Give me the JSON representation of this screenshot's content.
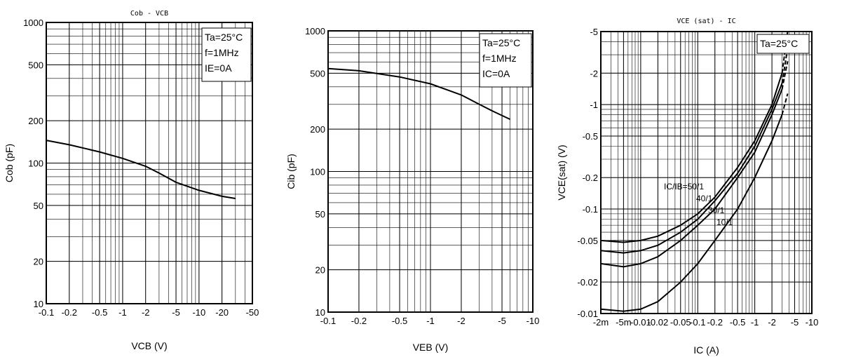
{
  "chart_data": [
    {
      "type": "line",
      "title": "Cob - VCB",
      "xlabel": "VCB (V)",
      "ylabel": "Cob (pF)",
      "x_scale": "log",
      "y_scale": "log",
      "xlim": [
        -0.1,
        -50
      ],
      "ylim": [
        10,
        1000
      ],
      "x_ticks": [
        -0.1,
        -0.2,
        -0.5,
        -1,
        -2,
        -5,
        -10,
        -20,
        -50
      ],
      "x_tick_labels": [
        "-0.1",
        "-0.2",
        "-0.5",
        "-1",
        "-2",
        "-5",
        "-10",
        "-20",
        "-50"
      ],
      "y_ticks": [
        10,
        20,
        50,
        100,
        200,
        500,
        1000
      ],
      "y_tick_labels": [
        "10",
        "20",
        "50",
        "100",
        "200",
        "500",
        "1000"
      ],
      "conditions": [
        "Ta=25°C",
        "f=1MHz",
        "IE=0A"
      ],
      "series": [
        {
          "x": [
            -0.1,
            -0.2,
            -0.5,
            -1,
            -2,
            -3,
            -5,
            -10,
            -20,
            -30
          ],
          "y": [
            145,
            135,
            120,
            108,
            95,
            85,
            73,
            64,
            58,
            56
          ]
        }
      ]
    },
    {
      "type": "line",
      "title": "",
      "xlabel": "VEB (V)",
      "ylabel": "Cib (pF)",
      "x_scale": "log",
      "y_scale": "log",
      "xlim": [
        -0.1,
        -10
      ],
      "ylim": [
        10,
        1000
      ],
      "x_ticks": [
        -0.1,
        -0.2,
        -0.5,
        -1,
        -2,
        -5,
        -10
      ],
      "x_tick_labels": [
        "-0.1",
        "-0.2",
        "-0.5",
        "-1",
        "-2",
        "-5",
        "-10"
      ],
      "y_ticks": [
        10,
        20,
        50,
        100,
        200,
        500,
        1000
      ],
      "y_tick_labels": [
        "10",
        "20",
        "50",
        "100",
        "200",
        "500",
        "1000"
      ],
      "conditions": [
        "Ta=25°C",
        "f=1MHz",
        "IC=0A"
      ],
      "series": [
        {
          "x": [
            -0.1,
            -0.2,
            -0.5,
            -1,
            -2,
            -3,
            -4,
            -6
          ],
          "y": [
            540,
            520,
            470,
            420,
            350,
            300,
            270,
            235
          ]
        }
      ]
    },
    {
      "type": "line",
      "title": "VCE (sat) - IC",
      "xlabel": "IC (A)",
      "ylabel": "VCE(sat) (V)",
      "x_scale": "log",
      "y_scale": "log",
      "xlim": [
        -0.002,
        -10
      ],
      "ylim": [
        -0.01,
        -5
      ],
      "x_ticks": [
        -0.002,
        -0.005,
        -0.01,
        -0.02,
        -0.05,
        -0.1,
        -0.2,
        -0.5,
        -1,
        -2,
        -5,
        -10
      ],
      "x_tick_labels": [
        "-2m",
        "-5m",
        "-0.01",
        "-0.02",
        "-0.05",
        "-0.1",
        "-0.2",
        "-0.5",
        "-1",
        "-2",
        "-5",
        "-10"
      ],
      "y_ticks": [
        -0.01,
        -0.02,
        -0.05,
        -0.1,
        -0.2,
        -0.5,
        -1,
        -2,
        -5
      ],
      "y_tick_labels": [
        "-0.01",
        "-0.02",
        "-0.05",
        "-0.1",
        "-0.2",
        "-0.5",
        "-1",
        "-2",
        "-5"
      ],
      "conditions": [
        "Ta=25°C"
      ],
      "annotations": [
        "IC/IB=50/1",
        "40/1",
        "30/1",
        "10/1"
      ],
      "series": [
        {
          "name": "IC/IB=50/1",
          "x": [
            -0.002,
            -0.005,
            -0.01,
            -0.02,
            -0.05,
            -0.1,
            -0.2,
            -0.5,
            -1,
            -2,
            -3
          ],
          "y": [
            -0.05,
            -0.048,
            -0.05,
            -0.055,
            -0.07,
            -0.09,
            -0.13,
            -0.25,
            -0.45,
            -1.0,
            -2.0
          ]
        },
        {
          "name": "40/1",
          "x": [
            -0.002,
            -0.005,
            -0.01,
            -0.02,
            -0.05,
            -0.1,
            -0.2,
            -0.5,
            -1,
            -2,
            -3
          ],
          "y": [
            -0.04,
            -0.038,
            -0.04,
            -0.045,
            -0.06,
            -0.08,
            -0.12,
            -0.22,
            -0.4,
            -0.9,
            -1.6
          ]
        },
        {
          "name": "30/1",
          "x": [
            -0.002,
            -0.005,
            -0.01,
            -0.02,
            -0.05,
            -0.1,
            -0.2,
            -0.5,
            -1,
            -2,
            -3
          ],
          "y": [
            -0.03,
            -0.028,
            -0.03,
            -0.035,
            -0.05,
            -0.07,
            -0.1,
            -0.2,
            -0.35,
            -0.8,
            -1.4
          ]
        },
        {
          "name": "10/1",
          "x": [
            -0.002,
            -0.005,
            -0.01,
            -0.02,
            -0.05,
            -0.1,
            -0.2,
            -0.5,
            -1,
            -2,
            -3
          ],
          "y": [
            -0.011,
            -0.0105,
            -0.011,
            -0.013,
            -0.02,
            -0.03,
            -0.05,
            -0.1,
            -0.2,
            -0.45,
            -0.8
          ]
        }
      ]
    }
  ]
}
